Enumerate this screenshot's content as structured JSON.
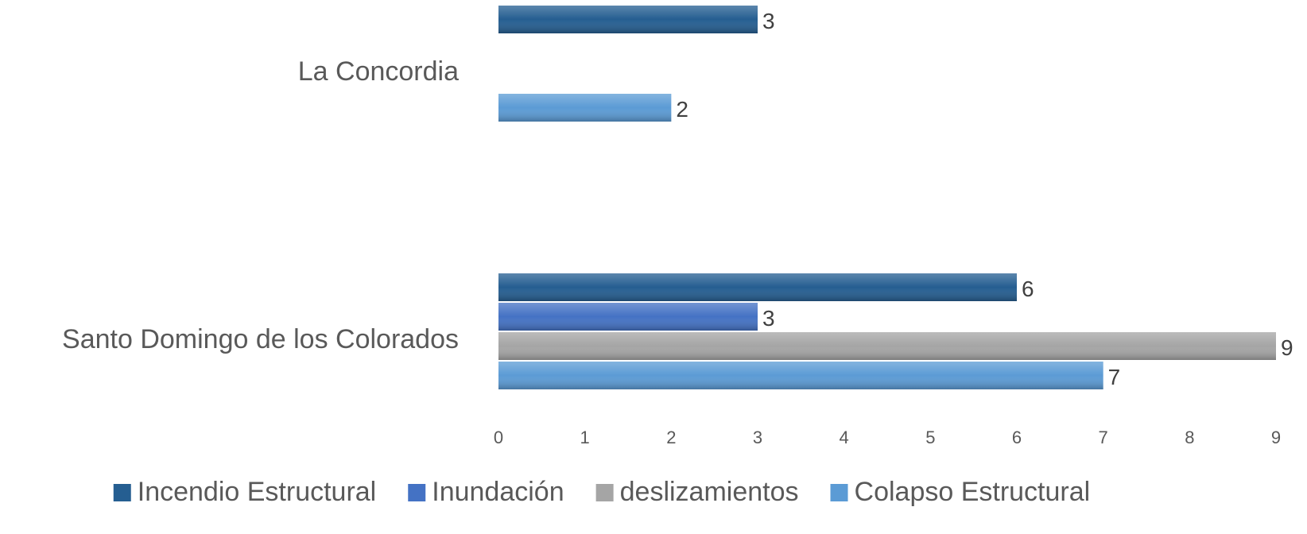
{
  "chart_data": {
    "type": "bar",
    "orientation": "horizontal",
    "categories": [
      "La Concordia",
      "Santo Domingo de los Colorados"
    ],
    "series": [
      {
        "name": "Incendio Estructural",
        "color": "#255e91",
        "values": [
          3,
          6
        ]
      },
      {
        "name": "Inundación",
        "color": "#4472c4",
        "values": [
          null,
          3
        ]
      },
      {
        "name": "deslizamientos",
        "color": "#a5a5a5",
        "values": [
          null,
          9
        ]
      },
      {
        "name": "Colapso Estructural",
        "color": "#5b9bd5",
        "values": [
          2,
          7
        ]
      }
    ],
    "xlim": [
      0,
      9
    ],
    "xticks": [
      0,
      1,
      2,
      3,
      4,
      5,
      6,
      7,
      8,
      9
    ],
    "grid": false,
    "legend": "bottom"
  }
}
